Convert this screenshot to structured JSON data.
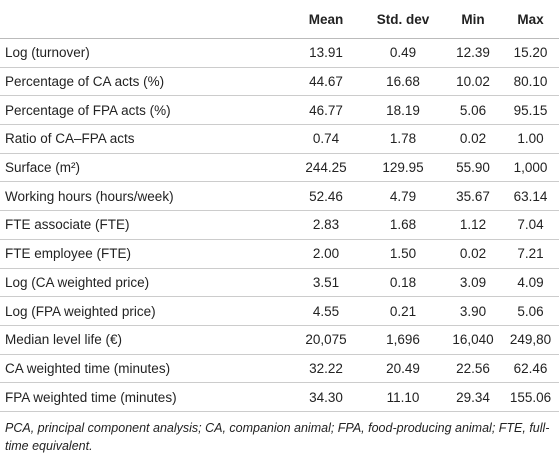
{
  "table": {
    "header": [
      "",
      "Mean",
      "Std. dev",
      "Min",
      "Max"
    ],
    "rows": [
      [
        "Log (turnover)",
        "13.91",
        "0.49",
        "12.39",
        "15.20"
      ],
      [
        "Percentage of CA acts (%)",
        "44.67",
        "16.68",
        "10.02",
        "80.10"
      ],
      [
        "Percentage of FPA acts (%)",
        "46.77",
        "18.19",
        "5.06",
        "95.15"
      ],
      [
        "Ratio of CA–FPA acts",
        "0.74",
        "1.78",
        "0.02",
        "1.00"
      ],
      [
        "Surface (m²)",
        "244.25",
        "129.95",
        "55.90",
        "1,000"
      ],
      [
        "Working hours (hours/week)",
        "52.46",
        "4.79",
        "35.67",
        "63.14"
      ],
      [
        "FTE associate (FTE)",
        "2.83",
        "1.68",
        "1.12",
        "7.04"
      ],
      [
        "FTE employee (FTE)",
        "2.00",
        "1.50",
        "0.02",
        "7.21"
      ],
      [
        "Log (CA weighted price)",
        "3.51",
        "0.18",
        "3.09",
        "4.09"
      ],
      [
        "Log (FPA weighted price)",
        "4.55",
        "0.21",
        "3.90",
        "5.06"
      ],
      [
        "Median level life (€)",
        "20,075",
        "1,696",
        "16,040",
        "249,80"
      ],
      [
        "CA weighted time (minutes)",
        "32.22",
        "20.49",
        "22.56",
        "62.46"
      ],
      [
        "FPA weighted time (minutes)",
        "34.30",
        "11.10",
        "29.34",
        "155.06"
      ]
    ],
    "footnote": "PCA, principal component analysis; CA, companion animal; FPA, food-producing animal; FTE, full-time equivalent."
  }
}
